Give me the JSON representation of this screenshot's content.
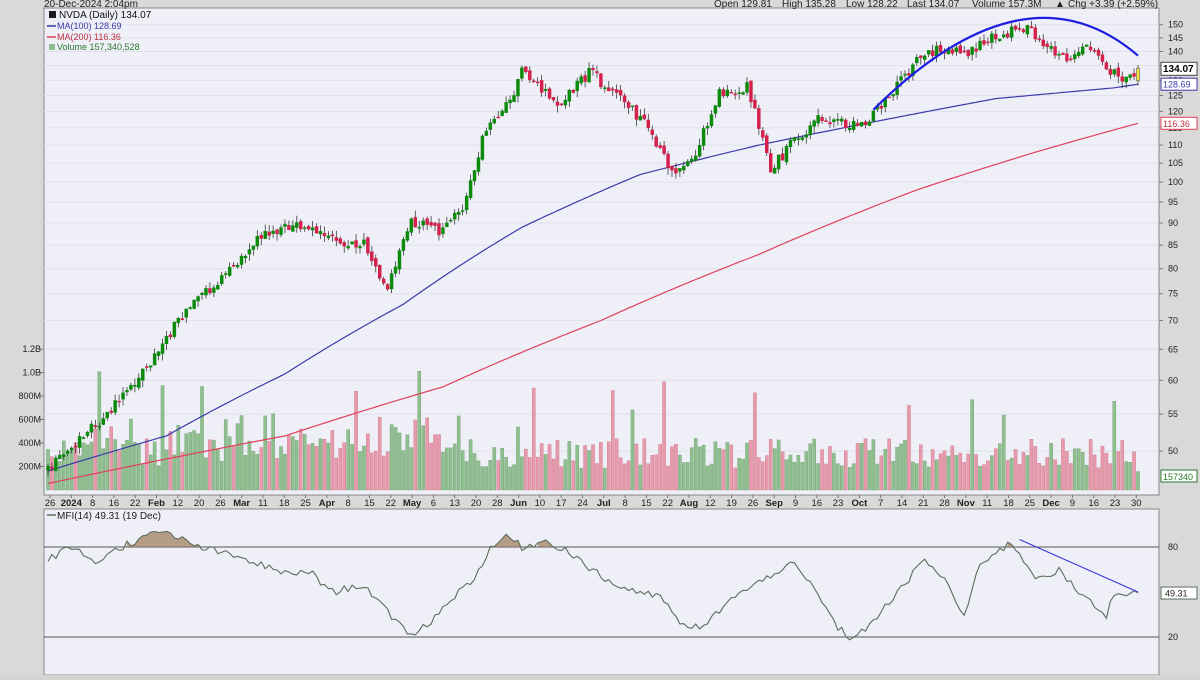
{
  "header": {
    "datetime": "20-Dec-2024 2:04pm",
    "open": "Open 129.81",
    "high": "High 135.28",
    "low": "Low 128.22",
    "last": "Last 134.07",
    "volume": "Volume 157.3M",
    "change": "Chg +3.39 (+2.59%)",
    "change_arrow": "▲"
  },
  "legend": {
    "title": "NVDA (Daily) 134.07",
    "ma100": "MA(100) 128.69",
    "ma200": "MA(200) 116.36",
    "volume": "Volume 157,340,528",
    "mfi": "MFI(14) 49.31 (19 Dec)"
  },
  "colors": {
    "up": "#0a8a0a",
    "down": "#d4204a",
    "ma100": "#3a3aa8",
    "ma200": "#e0405a",
    "trend": "#1e1ee0",
    "vol_up": "#8fbf8f",
    "vol_down": "#e69aab",
    "mfi": "#5a6e5a",
    "bg": "#efeff8"
  },
  "badges": {
    "last": "134.07",
    "ma100": "128.69",
    "ma200": "116.36",
    "volume": "157340",
    "mfi": "49.31"
  },
  "chart_data": [
    {
      "type": "candlestick",
      "ylim": [
        45,
        155
      ],
      "y_ticks": [
        50,
        55,
        60,
        65,
        70,
        75,
        80,
        85,
        90,
        95,
        100,
        105,
        110,
        115,
        120,
        125,
        130,
        135,
        140,
        145,
        150
      ],
      "vol_ticks": [
        {
          "label": "200M",
          "value": 200
        },
        {
          "label": "400M",
          "value": 400
        },
        {
          "label": "600M",
          "value": 600
        },
        {
          "label": "800M",
          "value": 800
        },
        {
          "label": "1.0B",
          "value": 1000
        },
        {
          "label": "1.2B",
          "value": 1200
        }
      ],
      "x_labels": [
        "26",
        "2024",
        "8",
        "16",
        "22",
        "Feb",
        "12",
        "20",
        "26",
        "Mar",
        "11",
        "18",
        "25",
        "Apr",
        "8",
        "15",
        "22",
        "May",
        "6",
        "13",
        "20",
        "28",
        "Jun",
        "10",
        "17",
        "24",
        "Jul",
        "8",
        "15",
        "22",
        "Aug",
        "12",
        "19",
        "26",
        "Sep",
        "9",
        "16",
        "23",
        "Oct",
        "7",
        "14",
        "21",
        "28",
        "Nov",
        "11",
        "18",
        "25",
        "Dec",
        "9",
        "16",
        "23",
        "30"
      ],
      "price_keypoints": [
        [
          0,
          47.5
        ],
        [
          15,
          55
        ],
        [
          25,
          62
        ],
        [
          35,
          72
        ],
        [
          45,
          79
        ],
        [
          55,
          88
        ],
        [
          63,
          89
        ],
        [
          75,
          86
        ],
        [
          80,
          85
        ],
        [
          86,
          76
        ],
        [
          92,
          90
        ],
        [
          100,
          88
        ],
        [
          105,
          94
        ],
        [
          112,
          118
        ],
        [
          117,
          122
        ],
        [
          120,
          135
        ],
        [
          124,
          128
        ],
        [
          130,
          122
        ],
        [
          137,
          133
        ],
        [
          143,
          126
        ],
        [
          150,
          118
        ],
        [
          158,
          103
        ],
        [
          163,
          105
        ],
        [
          170,
          126
        ],
        [
          177,
          128
        ],
        [
          183,
          103
        ],
        [
          188,
          110
        ],
        [
          195,
          118
        ],
        [
          202,
          116
        ],
        [
          207,
          117
        ],
        [
          215,
          128
        ],
        [
          220,
          137
        ],
        [
          225,
          141
        ],
        [
          232,
          139
        ],
        [
          240,
          146
        ],
        [
          248,
          149
        ],
        [
          253,
          141
        ],
        [
          258,
          137
        ],
        [
          263,
          143
        ],
        [
          268,
          134
        ],
        [
          272,
          130
        ],
        [
          276,
          134.07
        ]
      ],
      "ma100_keypoints": [
        [
          0,
          47.5
        ],
        [
          30,
          52
        ],
        [
          60,
          61
        ],
        [
          90,
          73
        ],
        [
          120,
          89
        ],
        [
          150,
          102
        ],
        [
          180,
          110
        ],
        [
          210,
          117
        ],
        [
          240,
          124
        ],
        [
          270,
          127.5
        ],
        [
          276,
          128.69
        ]
      ],
      "ma200_keypoints": [
        [
          0,
          46
        ],
        [
          60,
          52
        ],
        [
          100,
          59
        ],
        [
          140,
          70
        ],
        [
          180,
          83
        ],
        [
          220,
          98
        ],
        [
          250,
          108
        ],
        [
          276,
          116.36
        ]
      ],
      "trend_arc": {
        "start_index": 209,
        "start_price": 120.5,
        "end_index": 276,
        "end_price": 138.5,
        "peak_index": 245,
        "peak_price": 151.5
      },
      "bars": 277,
      "mfi": {
        "ylim": [
          0,
          100
        ],
        "levels": [
          20,
          80
        ],
        "value": 49.31,
        "keypoints": [
          [
            0,
            72
          ],
          [
            6,
            80
          ],
          [
            12,
            70
          ],
          [
            20,
            82
          ],
          [
            26,
            88
          ],
          [
            30,
            90
          ],
          [
            36,
            82
          ],
          [
            44,
            76
          ],
          [
            52,
            70
          ],
          [
            60,
            62
          ],
          [
            66,
            64
          ],
          [
            72,
            50
          ],
          [
            80,
            55
          ],
          [
            88,
            30
          ],
          [
            92,
            22
          ],
          [
            96,
            28
          ],
          [
            102,
            45
          ],
          [
            108,
            60
          ],
          [
            112,
            78
          ],
          [
            116,
            88
          ],
          [
            120,
            80
          ],
          [
            126,
            84
          ],
          [
            132,
            77
          ],
          [
            138,
            64
          ],
          [
            144,
            54
          ],
          [
            150,
            50
          ],
          [
            156,
            45
          ],
          [
            160,
            28
          ],
          [
            166,
            26
          ],
          [
            172,
            44
          ],
          [
            180,
            56
          ],
          [
            188,
            70
          ],
          [
            194,
            52
          ],
          [
            200,
            26
          ],
          [
            204,
            18
          ],
          [
            210,
            34
          ],
          [
            216,
            52
          ],
          [
            222,
            72
          ],
          [
            228,
            55
          ],
          [
            232,
            32
          ],
          [
            236,
            70
          ],
          [
            240,
            76
          ],
          [
            244,
            83
          ],
          [
            250,
            60
          ],
          [
            256,
            64
          ],
          [
            262,
            47
          ],
          [
            268,
            34
          ],
          [
            270,
            50
          ],
          [
            276,
            49.31
          ]
        ],
        "trendline": {
          "start_index": 246,
          "start_value": 85,
          "end_index": 276,
          "end_value": 50
        }
      }
    }
  ]
}
